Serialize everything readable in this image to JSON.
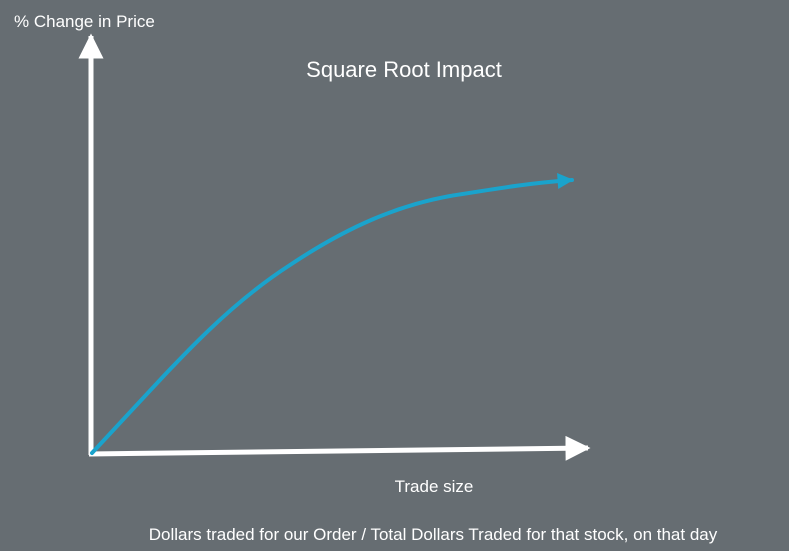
{
  "diagram": {
    "title": "Square Root Impact",
    "y_axis_label": "% Change in Price",
    "x_axis_label": "Trade size",
    "footnote": "Dollars traded for our Order  / Total Dollars Traded for that stock, on that day",
    "colors": {
      "background": "#666d72",
      "axes": "#ffffff",
      "curve": "#1aa3cc",
      "text": "#ffffff"
    }
  }
}
